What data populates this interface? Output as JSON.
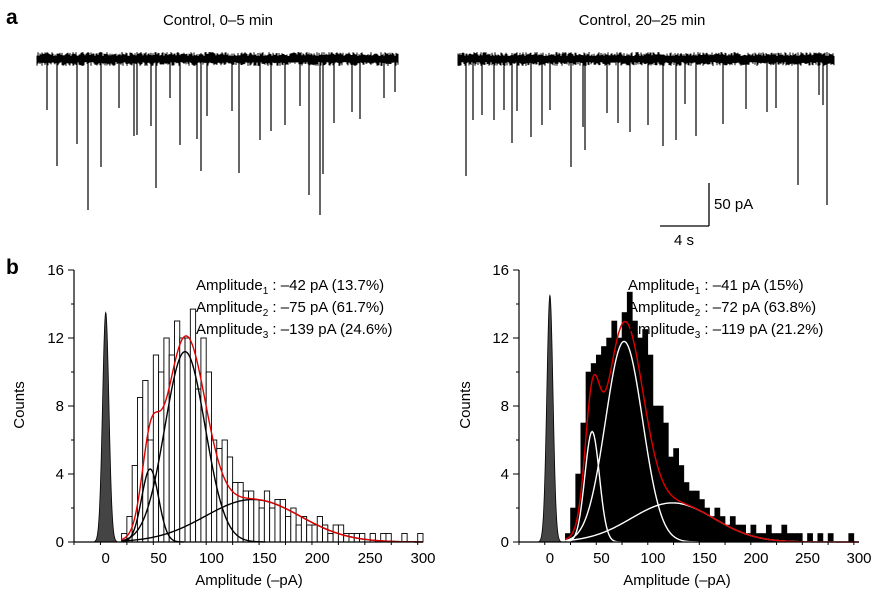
{
  "panel_a": {
    "letter": "a",
    "traces": [
      {
        "title": "Control, 0–5 min"
      },
      {
        "title": "Control, 20–25 min"
      }
    ],
    "scalebar": {
      "y_label": "50 pA",
      "x_label": "4 s"
    }
  },
  "panel_b": {
    "letter": "b"
  },
  "colors": {
    "fit_total": "#e00000",
    "noise": "#444444",
    "bars_right": "#000000"
  },
  "chart_data": [
    {
      "type": "bar",
      "xlabel": "Amplitude (–pA)",
      "ylabel": "Counts",
      "xlim": [
        -30,
        300
      ],
      "ylim": [
        0,
        16
      ],
      "xticks": [
        0,
        50,
        100,
        150,
        200,
        250,
        300
      ],
      "yticks": [
        0,
        4,
        8,
        12,
        16
      ],
      "bar_style": "open",
      "bin_width": 5,
      "bin_starts": [
        15,
        20,
        25,
        30,
        35,
        40,
        45,
        50,
        55,
        60,
        65,
        70,
        75,
        80,
        85,
        90,
        95,
        100,
        105,
        110,
        115,
        120,
        125,
        130,
        135,
        140,
        145,
        150,
        155,
        160,
        165,
        170,
        175,
        180,
        185,
        190,
        195,
        200,
        205,
        210,
        215,
        220,
        225,
        230,
        235,
        240,
        245,
        250,
        255,
        260,
        265,
        270,
        275,
        280,
        285,
        290,
        295
      ],
      "counts": [
        0.5,
        1.5,
        4.5,
        8.5,
        9.5,
        6,
        11,
        10,
        12,
        11,
        13,
        12,
        12,
        13.7,
        9,
        12,
        10,
        6,
        5.5,
        6,
        5,
        3.5,
        3.5,
        3,
        3,
        2.5,
        2,
        3,
        2,
        2.5,
        2.5,
        1.5,
        2,
        1,
        1.5,
        1,
        1,
        1.5,
        1,
        0.5,
        1,
        1,
        0.5,
        0.5,
        0.5,
        0.5,
        0,
        0.5,
        0,
        0.5,
        0.5,
        0,
        0,
        0.5,
        0,
        0,
        0.5
      ],
      "noise_peak": {
        "center": 0,
        "sd": 3,
        "height": 13.5
      },
      "fits": [
        {
          "mean": 42,
          "sd": 8,
          "height": 4.3
        },
        {
          "mean": 75,
          "sd": 19,
          "height": 11.2
        },
        {
          "mean": 139,
          "sd": 45,
          "height": 2.5
        }
      ],
      "annotations": [
        {
          "label": "Amplitude",
          "sub": "1",
          "value": " : –42 pA (13.7%)"
        },
        {
          "label": "Amplitude",
          "sub": "2",
          "value": " : –75 pA (61.7%)"
        },
        {
          "label": "Amplitude",
          "sub": "3",
          "value": " : –139 pA (24.6%)"
        }
      ]
    },
    {
      "type": "bar",
      "xlabel": "Amplitude (–pA)",
      "ylabel": "Counts",
      "xlim": [
        -30,
        300
      ],
      "ylim": [
        0,
        16
      ],
      "xticks": [
        0,
        50,
        100,
        150,
        200,
        250,
        300
      ],
      "yticks": [
        0,
        4,
        8,
        12,
        16
      ],
      "bar_style": "filled",
      "bin_width": 5,
      "bin_starts": [
        15,
        20,
        25,
        30,
        35,
        40,
        45,
        50,
        55,
        60,
        65,
        70,
        75,
        80,
        85,
        90,
        95,
        100,
        105,
        110,
        115,
        120,
        125,
        130,
        135,
        140,
        145,
        150,
        155,
        160,
        165,
        170,
        175,
        180,
        185,
        190,
        195,
        200,
        205,
        210,
        215,
        220,
        225,
        230,
        235,
        240,
        245,
        250,
        255,
        260,
        265,
        270,
        275,
        280,
        285,
        290,
        295
      ],
      "counts": [
        0.5,
        2,
        4,
        7,
        10,
        10.5,
        11,
        11.5,
        12,
        13,
        12,
        13.5,
        14.7,
        13,
        12,
        12.5,
        11,
        8,
        8,
        7,
        5,
        5.5,
        4.5,
        3.5,
        3,
        3,
        2.5,
        2,
        1.5,
        2,
        1.5,
        1,
        1.5,
        1,
        1,
        0.5,
        1,
        0.5,
        0.5,
        1,
        0.5,
        0.5,
        1,
        0.5,
        0.5,
        0.5,
        0,
        0.5,
        0,
        0.5,
        0,
        0.5,
        0,
        0,
        0,
        0.5,
        0
      ],
      "noise_peak": {
        "center": 0,
        "sd": 3,
        "height": 14.5
      },
      "fits": [
        {
          "mean": 41,
          "sd": 7,
          "height": 6.5
        },
        {
          "mean": 72,
          "sd": 18,
          "height": 11.8
        },
        {
          "mean": 119,
          "sd": 40,
          "height": 2.3
        }
      ],
      "annotations": [
        {
          "label": "Amplitude",
          "sub": "1",
          "value": " : –41 pA (15%)"
        },
        {
          "label": "Amplitude",
          "sub": "2",
          "value": " : –72 pA (63.8%)"
        },
        {
          "label": "Amplitude",
          "sub": "3",
          "value": " : –119 pA (21.2%)"
        }
      ]
    }
  ]
}
